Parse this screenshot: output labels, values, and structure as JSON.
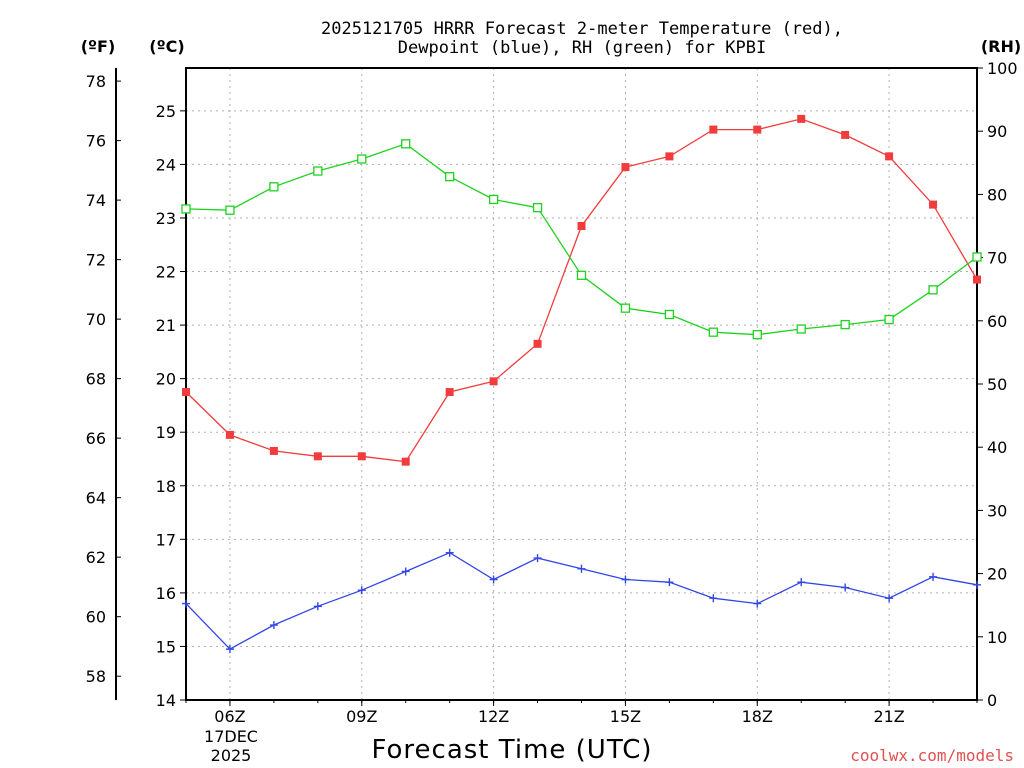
{
  "title_line1": "2025121705 HRRR Forecast 2-meter Temperature (red),",
  "title_line2": "Dewpoint (blue), RH (green) for KPBI",
  "unit_f": "(ºF)",
  "unit_c": "(ºC)",
  "unit_rh": "(RH)",
  "date_day": "17DEC",
  "date_year": "2025",
  "credit": "coolwx.com/models",
  "colors": {
    "temp": "#f03c3c",
    "dewp": "#3246e6",
    "rh": "#1ed21e",
    "credit": "#e05050"
  },
  "chart_data": {
    "type": "line",
    "title": "2025121705 HRRR Forecast 2-meter Temperature (red), Dewpoint (blue), RH (green) for KPBI",
    "xlabel": "Forecast Time (UTC)",
    "x": [
      5,
      6,
      7,
      8,
      9,
      10,
      11,
      12,
      13,
      14,
      15,
      16,
      17,
      18,
      19,
      20,
      21,
      22,
      23
    ],
    "x_range": [
      5,
      23
    ],
    "x_ticks": [
      6,
      9,
      12,
      15,
      18,
      21
    ],
    "x_tick_labels": [
      "06Z",
      "09Z",
      "12Z",
      "15Z",
      "18Z",
      "21Z"
    ],
    "y_celsius": {
      "range": [
        14,
        25.8
      ],
      "ticks": [
        14,
        15,
        16,
        17,
        18,
        19,
        20,
        21,
        22,
        23,
        24,
        25
      ]
    },
    "y_fahrenheit": {
      "ticks": [
        58,
        60,
        62,
        64,
        66,
        68,
        70,
        72,
        74,
        76,
        78
      ]
    },
    "y_rh": {
      "range": [
        0,
        100
      ],
      "ticks": [
        0,
        10,
        20,
        30,
        40,
        50,
        60,
        70,
        80,
        90,
        100
      ]
    },
    "grid": true,
    "series": [
      {
        "name": "2-meter Temperature",
        "axis": "celsius",
        "marker": "filled-square",
        "values": [
          19.75,
          18.95,
          18.65,
          18.55,
          18.55,
          18.45,
          19.75,
          19.95,
          20.65,
          22.85,
          23.95,
          24.15,
          24.65,
          24.65,
          24.85,
          24.55,
          24.15,
          23.25,
          21.85
        ]
      },
      {
        "name": "Dewpoint",
        "axis": "celsius",
        "marker": "plus",
        "values": [
          15.8,
          14.95,
          15.4,
          15.75,
          16.05,
          16.4,
          16.75,
          16.25,
          16.65,
          16.45,
          16.25,
          16.2,
          15.9,
          15.8,
          16.2,
          16.1,
          15.9,
          16.3,
          16.15
        ]
      },
      {
        "name": "RH",
        "axis": "rh",
        "marker": "open-square",
        "values": [
          77.7,
          77.5,
          81.2,
          83.7,
          85.6,
          88.0,
          82.8,
          79.2,
          77.9,
          67.2,
          62.0,
          61.0,
          58.2,
          57.8,
          58.7,
          59.4,
          60.2,
          64.9,
          70.1
        ]
      }
    ]
  }
}
